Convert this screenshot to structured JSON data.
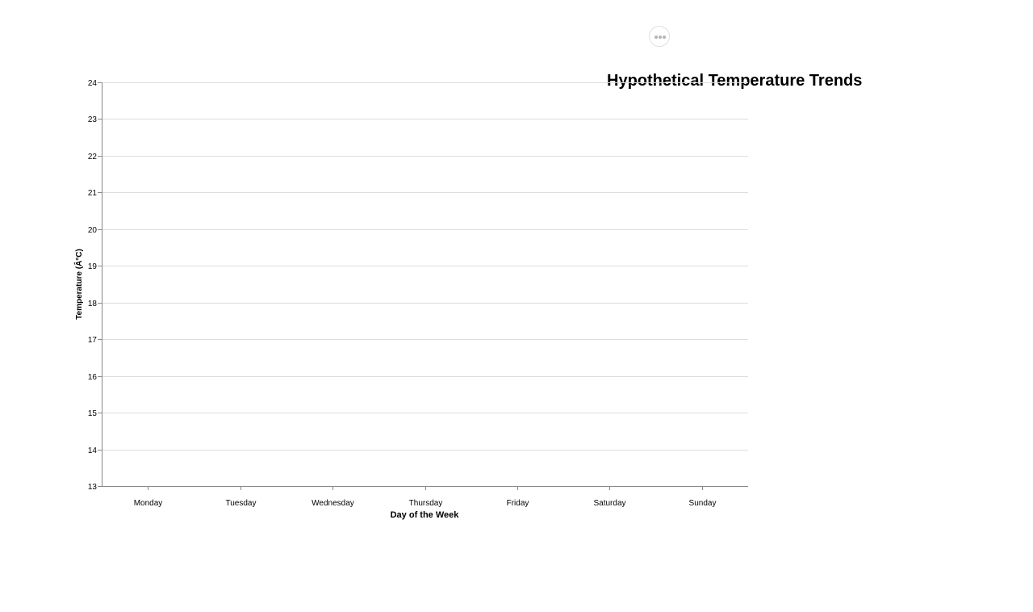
{
  "menu": {
    "icon": "more-horizontal-icon"
  },
  "chart_data": {
    "type": "line",
    "title": "Hypothetical Temperature Trends",
    "xlabel": "Day of the Week",
    "ylabel": "Temperature (Â°C)",
    "categories": [
      "Monday",
      "Tuesday",
      "Wednesday",
      "Thursday",
      "Friday",
      "Saturday",
      "Sunday"
    ],
    "ylim": [
      13,
      24
    ],
    "yticks": [
      13,
      14,
      15,
      16,
      17,
      18,
      19,
      20,
      21,
      22,
      23,
      24
    ],
    "series": [],
    "grid": true,
    "colors": {
      "grid": "#dddddd",
      "axis": "#888888",
      "text": "#000000"
    }
  }
}
